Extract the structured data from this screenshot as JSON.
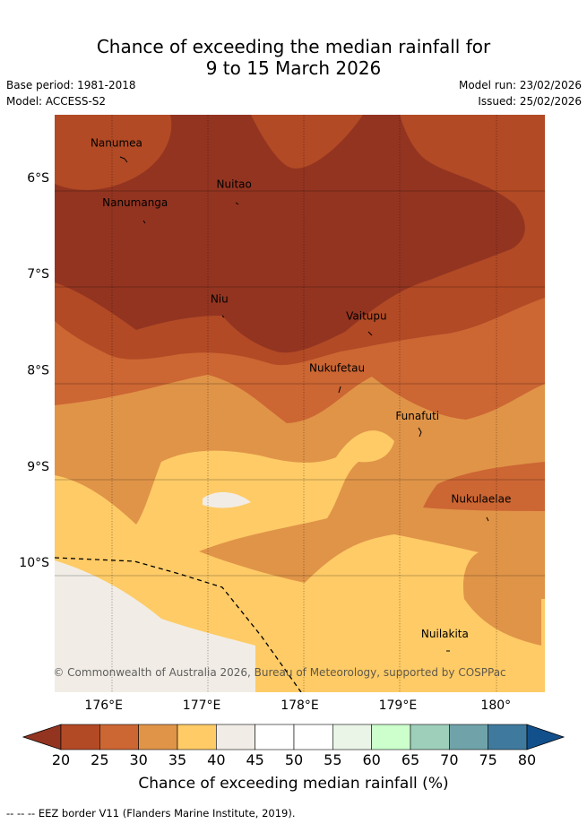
{
  "header": {
    "title_line1": "Chance of exceeding the median rainfall for",
    "title_line2": "9 to 15 March 2026",
    "base_period": "Base period: 1981-2018",
    "model": "Model: ACCESS-S2",
    "model_run": "Model run: 23/02/2026",
    "issued": "Issued: 25/02/2026"
  },
  "chart_data": {
    "type": "heatmap",
    "title": "Chance of exceeding the median rainfall for 9 to 15 March 2026",
    "xlabel": "",
    "ylabel": "",
    "x_range_lon": [
      175.5,
      180.5
    ],
    "y_range_lat": [
      -5.35,
      -11.35
    ],
    "x_ticks": [
      {
        "value": 176,
        "label": "176°E"
      },
      {
        "value": 177,
        "label": "177°E"
      },
      {
        "value": 178,
        "label": "178°E"
      },
      {
        "value": 179,
        "label": "179°E"
      },
      {
        "value": 180,
        "label": "180°"
      }
    ],
    "y_ticks": [
      {
        "value": -6,
        "label": "6°S"
      },
      {
        "value": -7,
        "label": "7°S"
      },
      {
        "value": -8,
        "label": "8°S"
      },
      {
        "value": -9,
        "label": "9°S"
      },
      {
        "value": -10,
        "label": "10°S"
      }
    ],
    "places": [
      {
        "name": "Nanumea",
        "lon": 176.13,
        "lat": -5.68
      },
      {
        "name": "Nuitao",
        "lon": 177.33,
        "lat": -6.11
      },
      {
        "name": "Nanumanga",
        "lon": 176.32,
        "lat": -6.3
      },
      {
        "name": "Niu",
        "lon": 177.18,
        "lat": -7.3
      },
      {
        "name": "Vaitupu",
        "lon": 178.68,
        "lat": -7.48
      },
      {
        "name": "Funafuti",
        "lon": 179.2,
        "lat": -8.52
      },
      {
        "name": "Nukufetau",
        "lon": 178.38,
        "lat": -8.02
      },
      {
        "name": "Nukulaelae",
        "lon": 179.85,
        "lat": -9.38
      },
      {
        "name": "Nuilakita",
        "lon": 179.48,
        "lat": -10.78
      }
    ],
    "copyright": "© Commonwealth of Australia 2026, Bureau of Meteorology, supported by COSPPac",
    "colorbar": {
      "label": "Chance of exceeding median rainfall (%)",
      "ticks": [
        "20",
        "25",
        "30",
        "35",
        "40",
        "45",
        "50",
        "55",
        "60",
        "65",
        "70",
        "75",
        "80"
      ],
      "colors": [
        "#b24a25",
        "#cc6633",
        "#e09448",
        "#fecb66",
        "#f1ede6",
        "#ffffff",
        "#ffffff",
        "#eaf5e8",
        "#ccffcc",
        "#9ecfbb",
        "#6fa3a9",
        "#3f7a9e"
      ],
      "under_color": "#933421",
      "over_color": "#12508c"
    },
    "footnote": "-- -- -- EEZ border V11 (Flanders Marine Institute, 2019)."
  }
}
